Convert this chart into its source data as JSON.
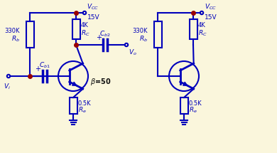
{
  "bg_color": "#faf6dc",
  "circuit_color": "#0000bb",
  "dot_color": "#990000",
  "line_width": 1.5,
  "circuit1": {
    "rb_labels": [
      "330K",
      "R_b"
    ],
    "rc_labels": [
      "4K",
      "R_C"
    ],
    "re_labels": [
      "0.5K",
      "R_e"
    ],
    "cb1_label": "C_{b1}",
    "cb2_label": "C_{b2}",
    "vcc_label": "V_{CC}",
    "vcc_val": "15V",
    "vi_label": "V_i",
    "vo_label": "V_o",
    "beta_label": "β=50"
  },
  "circuit2": {
    "rb_labels": [
      "330K",
      "R_b"
    ],
    "rc_labels": [
      "4K",
      "R_C"
    ],
    "re_labels": [
      "0.5K",
      "R_e"
    ],
    "vcc_label": "V_{CC}",
    "vcc_val": "15V"
  }
}
